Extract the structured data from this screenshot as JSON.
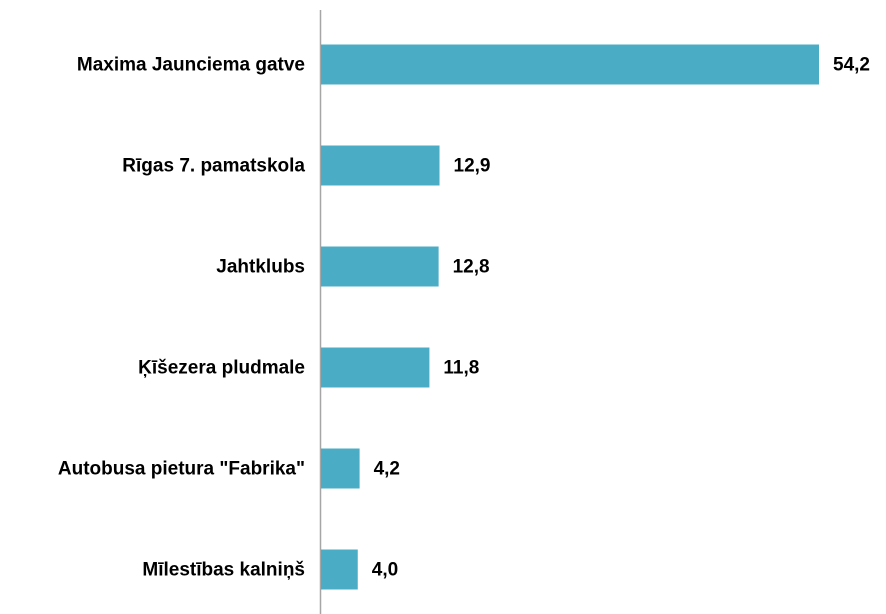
{
  "chart_data": {
    "type": "bar",
    "orientation": "horizontal",
    "categories": [
      "Maxima Jaunciema gatve",
      "Rīgas 7. pamatskola",
      "Jahtklubs",
      "Ķīšezera pludmale",
      "Autobusa pietura \"Fabrika\"",
      "Mīlestības kalniņš"
    ],
    "values": [
      54.2,
      12.9,
      12.8,
      11.8,
      4.2,
      4.0
    ],
    "value_labels": [
      "54,2",
      "12,9",
      "12,8",
      "11,8",
      "4,2",
      "4,0"
    ],
    "color": "#4bacc6"
  }
}
